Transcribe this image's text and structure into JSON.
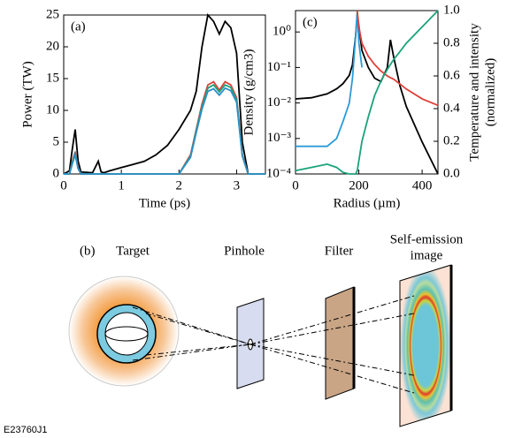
{
  "chart_data": [
    {
      "type": "line",
      "panel": "(a)",
      "xlabel": "Time (ps)",
      "ylabel": "Power (TW)",
      "xlim": [
        0,
        3.5
      ],
      "xticks": [
        0,
        1,
        2,
        3
      ],
      "ylim": [
        0,
        25
      ],
      "yticks": [
        0,
        5,
        10,
        15,
        20,
        25
      ],
      "x": [
        0,
        0.1,
        0.15,
        0.2,
        0.25,
        0.3,
        0.5,
        0.6,
        0.65,
        0.7,
        0.8,
        1.0,
        1.2,
        1.4,
        1.6,
        1.8,
        2.0,
        2.2,
        2.3,
        2.4,
        2.5,
        2.6,
        2.7,
        2.8,
        2.9,
        3.0,
        3.1,
        3.2,
        3.3,
        3.5
      ],
      "series": [
        {
          "color": "#000000",
          "values": [
            0,
            0.5,
            4,
            7,
            2,
            0.3,
            0.2,
            2,
            0.3,
            0.2,
            0.5,
            1,
            1.5,
            2,
            3,
            4.5,
            7,
            10,
            13,
            20,
            25,
            24,
            22,
            24,
            23,
            19,
            5,
            0,
            0,
            0
          ]
        },
        {
          "color": "#e0403a",
          "values": [
            0,
            0,
            2,
            3.5,
            1,
            0,
            0,
            0,
            0,
            0,
            0,
            0,
            0,
            0,
            0,
            0,
            0,
            3,
            7,
            11,
            14,
            14.5,
            13.2,
            14.5,
            14,
            12,
            3,
            0,
            0,
            0
          ]
        },
        {
          "color": "#1aa37a",
          "values": [
            0,
            0,
            1.8,
            3.2,
            0.9,
            0,
            0,
            0,
            0,
            0,
            0,
            0,
            0,
            0,
            0,
            0,
            0,
            2.8,
            6.8,
            10.6,
            13.5,
            14,
            12.9,
            14,
            13.6,
            11.7,
            2.9,
            0,
            0,
            0
          ]
        },
        {
          "color": "#2b8fc8",
          "values": [
            0,
            0,
            1.6,
            3,
            0.8,
            0,
            0,
            0,
            0,
            0,
            0,
            0,
            0,
            0,
            0,
            0,
            0,
            2.6,
            6.5,
            10.2,
            13,
            13.4,
            12.4,
            13.5,
            13.1,
            11.3,
            2.8,
            0,
            0,
            0
          ]
        }
      ]
    },
    {
      "type": "line",
      "panel": "(c)",
      "xlabel": "Radius (µm)",
      "ylabel": "Density (g/cm3)",
      "y2label": [
        "Temperature and intensity",
        "(normalized)"
      ],
      "log_y": true,
      "xlim": [
        0,
        450
      ],
      "xticks": [
        0,
        200,
        400
      ],
      "ylim": [
        0.0001,
        4
      ],
      "yticks": [
        {
          "value": 0.0001,
          "label": "10⁻⁴"
        },
        {
          "value": 0.001,
          "label": "10⁻³"
        },
        {
          "value": 0.01,
          "label": "10⁻²"
        },
        {
          "value": 0.1,
          "label": "10⁻¹"
        },
        {
          "value": 1,
          "label": "10⁰"
        }
      ],
      "y2lim": [
        0,
        1
      ],
      "y2ticks": [
        {
          "value": 0,
          "label": "0.0"
        },
        0.2,
        0.4,
        0.6,
        0.8,
        {
          "value": 1,
          "label": "1.0"
        }
      ],
      "x": [
        0,
        50,
        100,
        130,
        150,
        170,
        180,
        190,
        195,
        200,
        210,
        230,
        250,
        270,
        290,
        300,
        310,
        330,
        350,
        400,
        450
      ],
      "series": [
        {
          "color": "#000000",
          "values": [
            0.013,
            0.014,
            0.018,
            0.025,
            0.035,
            0.06,
            0.12,
            0.8,
            3,
            1.5,
            0.3,
            0.1,
            0.05,
            0.04,
            0.1,
            0.6,
            0.2,
            0.03,
            0.008,
            0.0008,
            0.0001
          ]
        },
        {
          "color": "#2b9bd6",
          "values": [
            0.0006,
            0.0006,
            0.0006,
            0.001,
            0.003,
            0.01,
            0.05,
            0.8,
            4,
            0.5,
            0.1,
            null,
            null,
            null,
            null,
            null,
            null,
            null,
            null,
            null,
            null
          ]
        },
        {
          "color": "#e0403a",
          "axis": "y2",
          "values": [
            null,
            null,
            null,
            null,
            null,
            null,
            null,
            null,
            1,
            0.9,
            0.8,
            0.72,
            0.67,
            0.63,
            0.6,
            0.59,
            0.58,
            0.55,
            0.52,
            0.46,
            0.42
          ]
        },
        {
          "color": "#1aa37a",
          "axis": "y2",
          "values": [
            0.02,
            0.04,
            0.06,
            0.04,
            0.01,
            0,
            0,
            0,
            0.02,
            0.08,
            0.2,
            0.35,
            0.48,
            0.57,
            0.64,
            0.67,
            0.7,
            0.75,
            0.8,
            0.9,
            1
          ]
        }
      ]
    }
  ],
  "diagram": {
    "panel": "(b)",
    "labels": [
      "Target",
      "Pinhole",
      "Filter"
    ],
    "image_label": [
      "Self-emission",
      "image"
    ],
    "code": "E23760J1"
  }
}
